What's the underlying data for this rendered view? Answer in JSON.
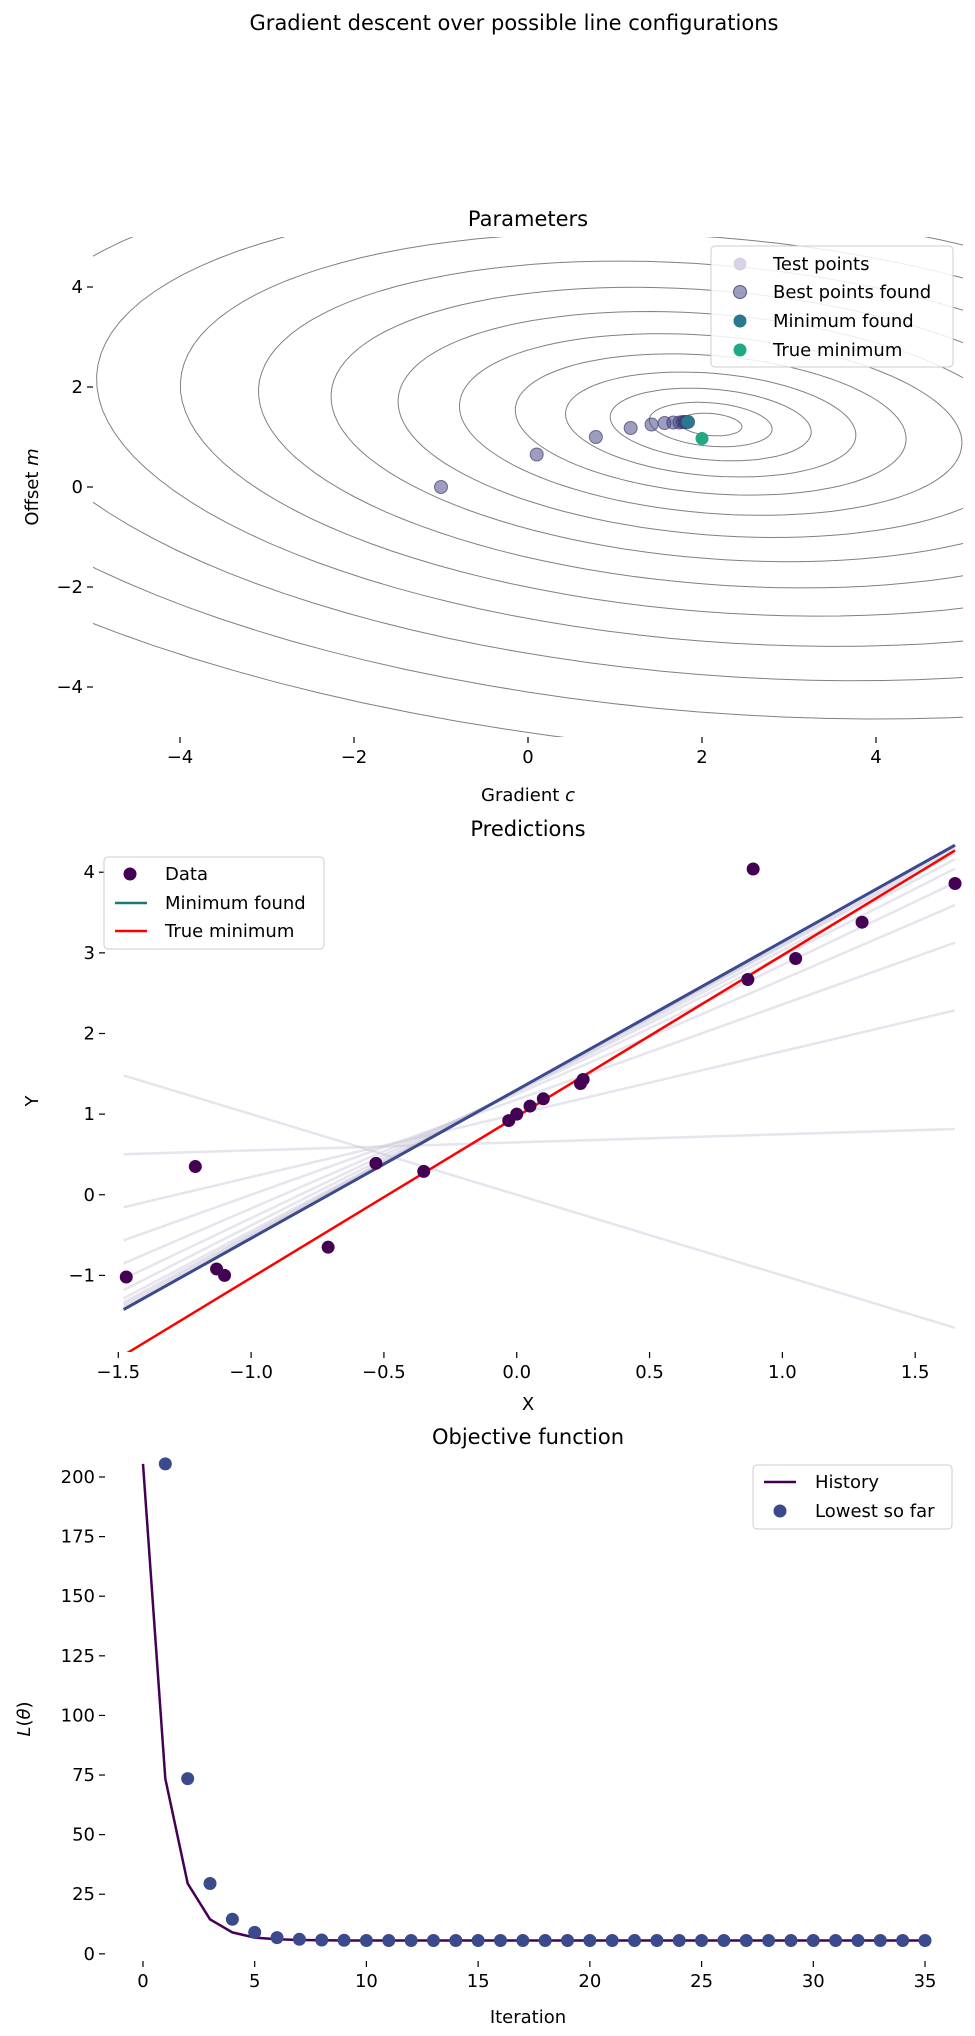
{
  "figure": {
    "suptitle": "Gradient descent over possible line configurations"
  },
  "chart_data": [
    {
      "type": "scatter",
      "title": "Parameters",
      "xlabel": "Gradient c",
      "ylabel": "Offset m",
      "xlim": [
        -5,
        5
      ],
      "ylim": [
        -5,
        5
      ],
      "xticks": [
        -4,
        -2,
        0,
        2,
        4
      ],
      "yticks": [
        -4,
        -2,
        0,
        2,
        4
      ],
      "contours": {
        "center": [
          2.1,
          1.25
        ],
        "color": "#808080",
        "levels": [
          0.28,
          0.55,
          0.9,
          1.3,
          1.75,
          2.25,
          2.8,
          3.4,
          4.05,
          4.75,
          5.5,
          6.35,
          7.3,
          8.3
        ]
      },
      "legend": {
        "position": "top-right",
        "entries": [
          "Test points",
          "Best points found",
          "Minimum found",
          "True minimum"
        ]
      },
      "series": [
        {
          "name": "Best points found",
          "color": "#3b3c7a",
          "points": [
            [
              -1.0,
              0.0
            ],
            [
              0.1,
              0.65
            ],
            [
              0.78,
              1.0
            ],
            [
              1.18,
              1.18
            ],
            [
              1.42,
              1.25
            ],
            [
              1.57,
              1.28
            ],
            [
              1.67,
              1.29
            ],
            [
              1.74,
              1.29
            ],
            [
              1.78,
              1.3
            ],
            [
              1.8,
              1.3
            ],
            [
              1.82,
              1.3
            ],
            [
              1.84,
              1.3
            ]
          ]
        },
        {
          "name": "Minimum found",
          "color": "#2a788e",
          "points": [
            [
              1.84,
              1.3
            ]
          ]
        },
        {
          "name": "True minimum",
          "color": "#22a884",
          "points": [
            [
              2.0,
              0.97
            ]
          ]
        }
      ]
    },
    {
      "type": "line",
      "title": "Predictions",
      "xlabel": "X",
      "ylabel": "Y",
      "xlim": [
        -1.55,
        1.68
      ],
      "ylim": [
        -1.95,
        4.35
      ],
      "xticks": [
        -1.5,
        -1.0,
        -0.5,
        0.0,
        0.5,
        1.0,
        1.5
      ],
      "xtick_labels": [
        "−1.5",
        "−1.0",
        "−0.5",
        "0.0",
        "0.5",
        "1.0",
        "1.5"
      ],
      "yticks": [
        -1,
        0,
        1,
        2,
        3,
        4
      ],
      "legend": {
        "position": "top-left",
        "entries": [
          "Data",
          "Minimum found",
          "True minimum"
        ]
      },
      "data_points": {
        "name": "Data",
        "color": "#440154",
        "points": [
          [
            -1.47,
            -1.02
          ],
          [
            -1.21,
            0.35
          ],
          [
            -1.13,
            -0.92
          ],
          [
            -1.1,
            -1.0
          ],
          [
            -0.71,
            -0.65
          ],
          [
            -0.53,
            0.39
          ],
          [
            -0.35,
            0.29
          ],
          [
            -0.03,
            0.92
          ],
          [
            0.0,
            1.0
          ],
          [
            0.05,
            1.1
          ],
          [
            0.1,
            1.19
          ],
          [
            0.24,
            1.38
          ],
          [
            0.25,
            1.43
          ],
          [
            0.87,
            2.67
          ],
          [
            0.89,
            4.04
          ],
          [
            1.05,
            2.93
          ],
          [
            1.3,
            3.38
          ],
          [
            1.65,
            3.86
          ]
        ]
      },
      "x_range": [
        -1.48,
        1.65
      ],
      "test_lines": {
        "color": "#c8c3d8",
        "params": [
          [
            -1.0,
            0.0
          ],
          [
            0.1,
            0.65
          ],
          [
            0.78,
            1.0
          ],
          [
            1.18,
            1.18
          ],
          [
            1.42,
            1.25
          ],
          [
            1.57,
            1.28
          ],
          [
            1.67,
            1.29
          ],
          [
            1.74,
            1.29
          ],
          [
            1.78,
            1.3
          ],
          [
            1.8,
            1.3
          ],
          [
            1.82,
            1.3
          ]
        ]
      },
      "minimum_found": {
        "name": "Minimum found",
        "color": "#3b4a8c",
        "legend_color": "#21767a",
        "params": [
          1.84,
          1.3
        ]
      },
      "true_minimum": {
        "name": "True minimum",
        "color": "#ff0000",
        "params": [
          2.0,
          0.97
        ]
      }
    },
    {
      "type": "line",
      "title": "Objective function",
      "xlabel": "Iteration",
      "ylabel": "L(θ)",
      "xlim": [
        -1.7,
        36.7
      ],
      "ylim": [
        -3,
        213
      ],
      "xticks": [
        0,
        5,
        10,
        15,
        20,
        25,
        30,
        35
      ],
      "yticks": [
        0,
        25,
        50,
        75,
        100,
        125,
        150,
        175,
        200
      ],
      "legend": {
        "position": "top-right",
        "entries": [
          "History",
          "Lowest so far"
        ]
      },
      "history": {
        "name": "History",
        "color": "#440154",
        "x": [
          0,
          1,
          2,
          3,
          4,
          5,
          6,
          7,
          8,
          9,
          10,
          11,
          12,
          13,
          14,
          15,
          16,
          17,
          18,
          19,
          20,
          21,
          22,
          23,
          24,
          25,
          26,
          27,
          28,
          29,
          30,
          31,
          32,
          33,
          34,
          35
        ],
        "y": [
          205.5,
          73.5,
          29.5,
          14.5,
          9.0,
          6.8,
          6.1,
          5.8,
          5.7,
          5.6,
          5.6,
          5.6,
          5.6,
          5.6,
          5.6,
          5.6,
          5.6,
          5.6,
          5.6,
          5.6,
          5.6,
          5.6,
          5.6,
          5.6,
          5.6,
          5.6,
          5.6,
          5.6,
          5.6,
          5.6,
          5.6,
          5.6,
          5.6,
          5.6,
          5.6,
          5.6
        ]
      },
      "lowest": {
        "name": "Lowest so far",
        "color": "#3b4a8c",
        "x": [
          1,
          2,
          3,
          4,
          5,
          6,
          7,
          8,
          9,
          10,
          11,
          12,
          13,
          14,
          15,
          16,
          17,
          18,
          19,
          20,
          21,
          22,
          23,
          24,
          25,
          26,
          27,
          28,
          29,
          30,
          31,
          32,
          33,
          34,
          35
        ],
        "y": [
          205.5,
          73.5,
          29.5,
          14.5,
          9.0,
          6.8,
          6.1,
          5.8,
          5.7,
          5.6,
          5.6,
          5.6,
          5.6,
          5.6,
          5.6,
          5.6,
          5.6,
          5.6,
          5.6,
          5.6,
          5.6,
          5.6,
          5.6,
          5.6,
          5.6,
          5.6,
          5.6,
          5.6,
          5.6,
          5.6,
          5.6,
          5.6,
          5.6,
          5.6,
          5.6
        ]
      }
    }
  ]
}
